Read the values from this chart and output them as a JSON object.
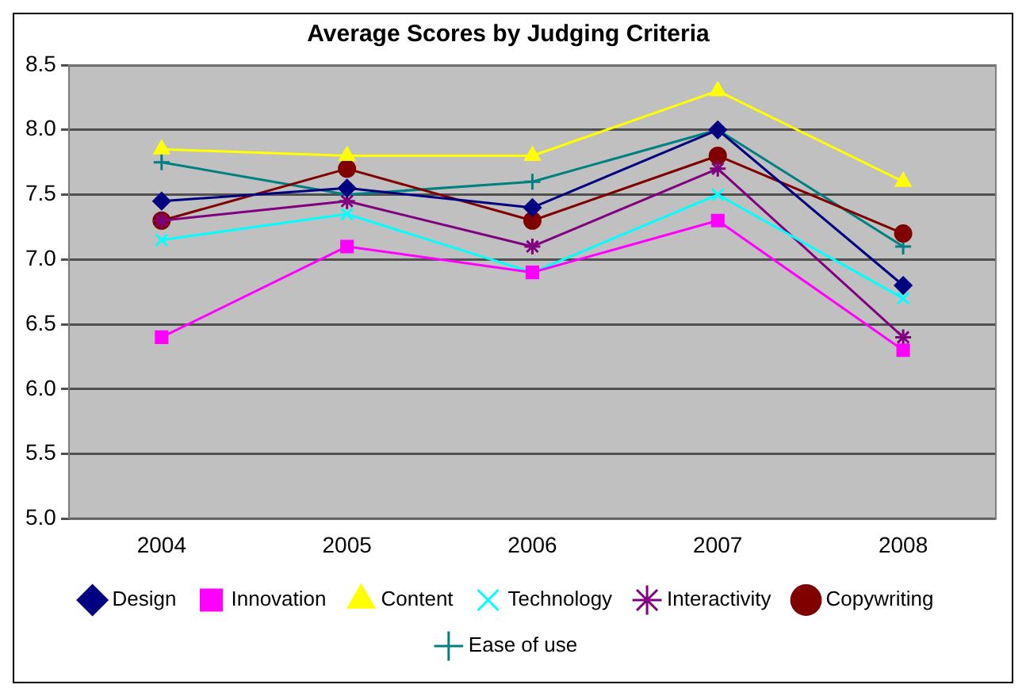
{
  "chart_data": {
    "type": "line",
    "title": "Average Scores by Judging Criteria",
    "categories": [
      "2004",
      "2005",
      "2006",
      "2007",
      "2008"
    ],
    "series": [
      {
        "name": "Design",
        "color": "#000080",
        "marker": "diamond",
        "values": [
          7.45,
          7.55,
          7.4,
          8.0,
          6.8
        ]
      },
      {
        "name": "Innovation",
        "color": "#ff00ff",
        "marker": "square",
        "values": [
          6.4,
          7.1,
          6.9,
          7.3,
          6.3
        ]
      },
      {
        "name": "Content",
        "color": "#ffff00",
        "marker": "triangle",
        "values": [
          7.85,
          7.8,
          7.8,
          8.3,
          7.6
        ]
      },
      {
        "name": "Technology",
        "color": "#00ffff",
        "marker": "x",
        "values": [
          7.15,
          7.35,
          6.9,
          7.5,
          6.7
        ]
      },
      {
        "name": "Interactivity",
        "color": "#800080",
        "marker": "cross",
        "values": [
          7.3,
          7.45,
          7.1,
          7.7,
          6.4
        ]
      },
      {
        "name": "Copywriting",
        "color": "#800000",
        "marker": "circle",
        "values": [
          7.3,
          7.7,
          7.3,
          7.8,
          7.2
        ]
      },
      {
        "name": "Ease of use",
        "color": "#008080",
        "marker": "plus",
        "values": [
          7.75,
          7.5,
          7.6,
          8.0,
          7.1
        ]
      }
    ],
    "ylim": [
      5.0,
      8.5
    ],
    "yticks": [
      {
        "value": 5,
        "label": "5.0"
      },
      5.5,
      {
        "value": 6,
        "label": "6.0"
      },
      6.5,
      {
        "value": 7,
        "label": "7.0"
      },
      7.5,
      {
        "value": 8,
        "label": "8.0"
      },
      8.5
    ],
    "grid": "y",
    "legend": "bottom"
  }
}
